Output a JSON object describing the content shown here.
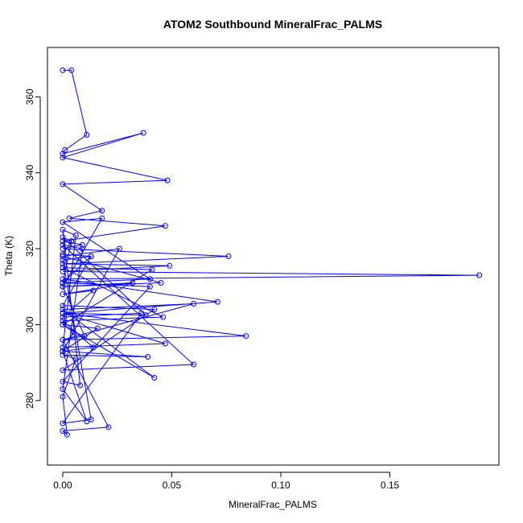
{
  "chart_data": {
    "type": "line",
    "title": "ATOM2 Southbound MineralFrac_PALMS",
    "xlabel": "MineralFrac_PALMS",
    "ylabel": "Theta (K)",
    "xlim": [
      -0.007,
      0.2
    ],
    "ylim": [
      263,
      373
    ],
    "x_ticks": [
      0.0,
      0.05,
      0.1,
      0.15
    ],
    "x_tick_labels": [
      "0.00",
      "0.05",
      "0.10",
      "0.15"
    ],
    "y_ticks": [
      280,
      300,
      320,
      340,
      360
    ],
    "y_tick_labels": [
      "280",
      "300",
      "320",
      "340",
      "360"
    ],
    "grid": false,
    "legend": "none",
    "series": [
      {
        "color": "#0000ff",
        "marker": "open-circle",
        "x": [
          0.0,
          0.004,
          0.011,
          0.001,
          0.0,
          0.037,
          0.0,
          0.048,
          0.0,
          0.018,
          0.003,
          0.047,
          0.0,
          0.009,
          0.0,
          0.076,
          0.0,
          0.049,
          0.0,
          0.191,
          0.0,
          0.071,
          0.0,
          0.084,
          0.0,
          0.06,
          0.0,
          0.042,
          0.0,
          0.005,
          0.0,
          0.026,
          0.0,
          0.045,
          0.0,
          0.018,
          0.0,
          0.04,
          0.0,
          0.013,
          0.0,
          0.013,
          0.0,
          0.036,
          0.0,
          0.014,
          0.0,
          0.032,
          0.0,
          0.01,
          0.0,
          0.021,
          0.0,
          0.002,
          0.0,
          0.006,
          0.0,
          0.039,
          0.0,
          0.016,
          0.0,
          0.041,
          0.0,
          0.046,
          0.0,
          0.014,
          0.0,
          0.011,
          0.0,
          0.009,
          0.0,
          0.06,
          0.0,
          0.042,
          0.0,
          0.013,
          0.0,
          0.004,
          0.0,
          0.038,
          0.0,
          0.047,
          0.0,
          0.006,
          0.0,
          0.008,
          0.0,
          0.04,
          0.0,
          0.004
        ],
        "y": [
          367.0,
          367.0,
          350.0,
          346.0,
          345.0,
          350.5,
          344.0,
          338.0,
          337.0,
          330.0,
          328.0,
          326.0,
          322.0,
          321.0,
          320.0,
          318.0,
          316.0,
          315.5,
          314.0,
          313.0,
          312.0,
          306.0,
          303.0,
          297.0,
          296.0,
          305.5,
          304.0,
          286.0,
          300.0,
          298.0,
          293.0,
          320.0,
          318.0,
          311.0,
          310.0,
          328.0,
          327.0,
          312.0,
          311.0,
          318.0,
          317.0,
          275.0,
          274.0,
          303.0,
          302.0,
          309.0,
          308.0,
          311.0,
          310.0,
          297.0,
          296.0,
          273.0,
          272.0,
          271.0,
          281.0,
          291.0,
          292.0,
          291.5,
          293.0,
          299.0,
          300.0,
          314.5,
          315.0,
          302.0,
          301.0,
          294.0,
          293.0,
          274.5,
          283.0,
          320.0,
          321.0,
          289.5,
          288.0,
          304.0,
          305.0,
          318.0,
          318.5,
          322.0,
          323.0,
          302.5,
          303.0,
          295.0,
          294.0,
          323.5,
          325.0,
          284.0,
          285.0,
          310.0,
          311.0,
          322.0
        ]
      }
    ]
  }
}
